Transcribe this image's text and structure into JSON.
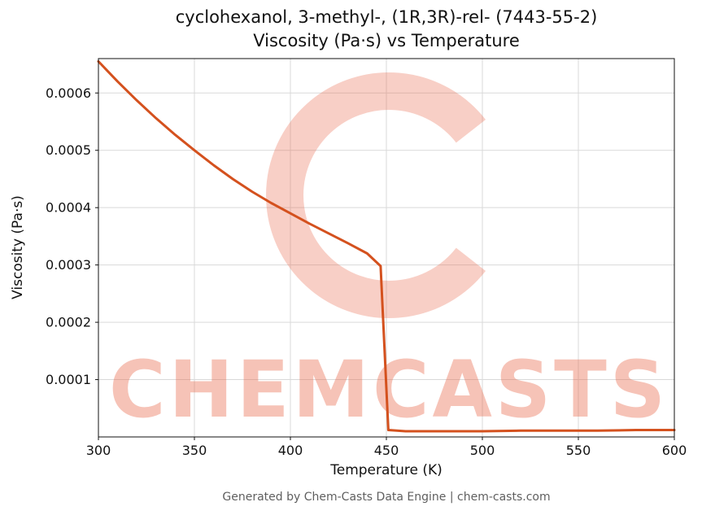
{
  "chart": {
    "title": "cyclohexanol, 3-methyl-, (1R,3R)-rel- (7443-55-2)",
    "subtitle": "Viscosity (Pa·s) vs Temperature",
    "xlabel": "Temperature (K)",
    "ylabel": "Viscosity (Pa·s)",
    "footer": "Generated by Chem-Casts Data Engine | chem-casts.com",
    "watermark_text": "CHEMCASTS",
    "line_color": "#d4511e",
    "watermark_color": "#e96a4d",
    "grid_color": "#d9d9d9",
    "axis_color": "#111111"
  },
  "chart_data": {
    "type": "line",
    "title": "cyclohexanol, 3-methyl-, (1R,3R)-rel- (7443-55-2) Viscosity (Pa·s) vs Temperature",
    "xlabel": "Temperature (K)",
    "ylabel": "Viscosity (Pa·s)",
    "xlim": [
      300,
      600
    ],
    "ylim": [
      0,
      0.00066
    ],
    "x_ticks": [
      300,
      350,
      400,
      450,
      500,
      550,
      600
    ],
    "y_ticks": [
      0.0001,
      0.0002,
      0.0003,
      0.0004,
      0.0005,
      0.0006
    ],
    "grid": true,
    "legend": false,
    "series": [
      {
        "name": "viscosity",
        "x": [
          300,
          310,
          320,
          330,
          340,
          350,
          360,
          370,
          380,
          390,
          400,
          410,
          420,
          430,
          440,
          447,
          451,
          460,
          480,
          500,
          520,
          540,
          560,
          580,
          600
        ],
        "y": [
          0.000655,
          0.00062,
          0.000587,
          0.000556,
          0.000527,
          0.0005,
          0.000474,
          0.00045,
          0.000428,
          0.000408,
          0.00039,
          0.000372,
          0.000355,
          0.000338,
          0.00032,
          0.000298,
          1.2e-05,
          1e-05,
          1e-05,
          1e-05,
          1.1e-05,
          1.1e-05,
          1.1e-05,
          1.2e-05,
          1.2e-05
        ]
      }
    ]
  }
}
